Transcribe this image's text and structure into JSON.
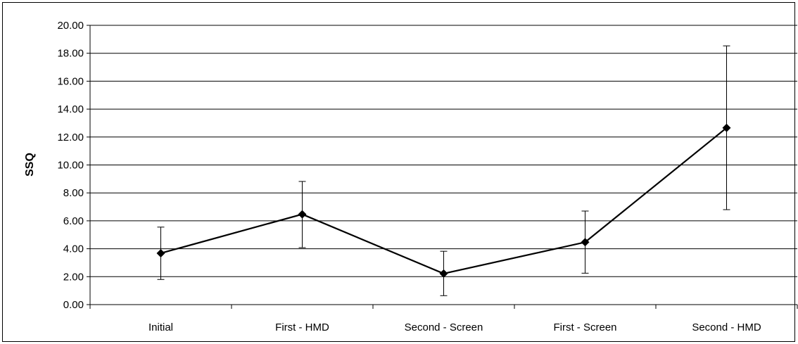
{
  "chart_data": {
    "type": "line",
    "title": "",
    "xlabel": "",
    "ylabel": "SSQ",
    "categories": [
      "Initial",
      "First - HMD",
      "Second - Screen",
      "First - Screen",
      "Second - HMD"
    ],
    "series": [
      {
        "values": [
          3.68,
          6.47,
          2.22,
          4.47,
          12.66
        ],
        "error_low": [
          1.8,
          4.08,
          0.64,
          2.25,
          6.8
        ],
        "error_high": [
          5.55,
          8.82,
          3.82,
          6.7,
          18.53
        ]
      }
    ],
    "ylim": [
      0,
      20
    ],
    "yticks": [
      "0.00",
      "2.00",
      "4.00",
      "6.00",
      "8.00",
      "10.00",
      "12.00",
      "14.00",
      "16.00",
      "18.00",
      "20.00"
    ],
    "ytick_values": [
      0,
      2,
      4,
      6,
      8,
      10,
      12,
      14,
      16,
      18,
      20
    ],
    "grid": true,
    "marker": "diamond",
    "line_color": "#000000"
  }
}
